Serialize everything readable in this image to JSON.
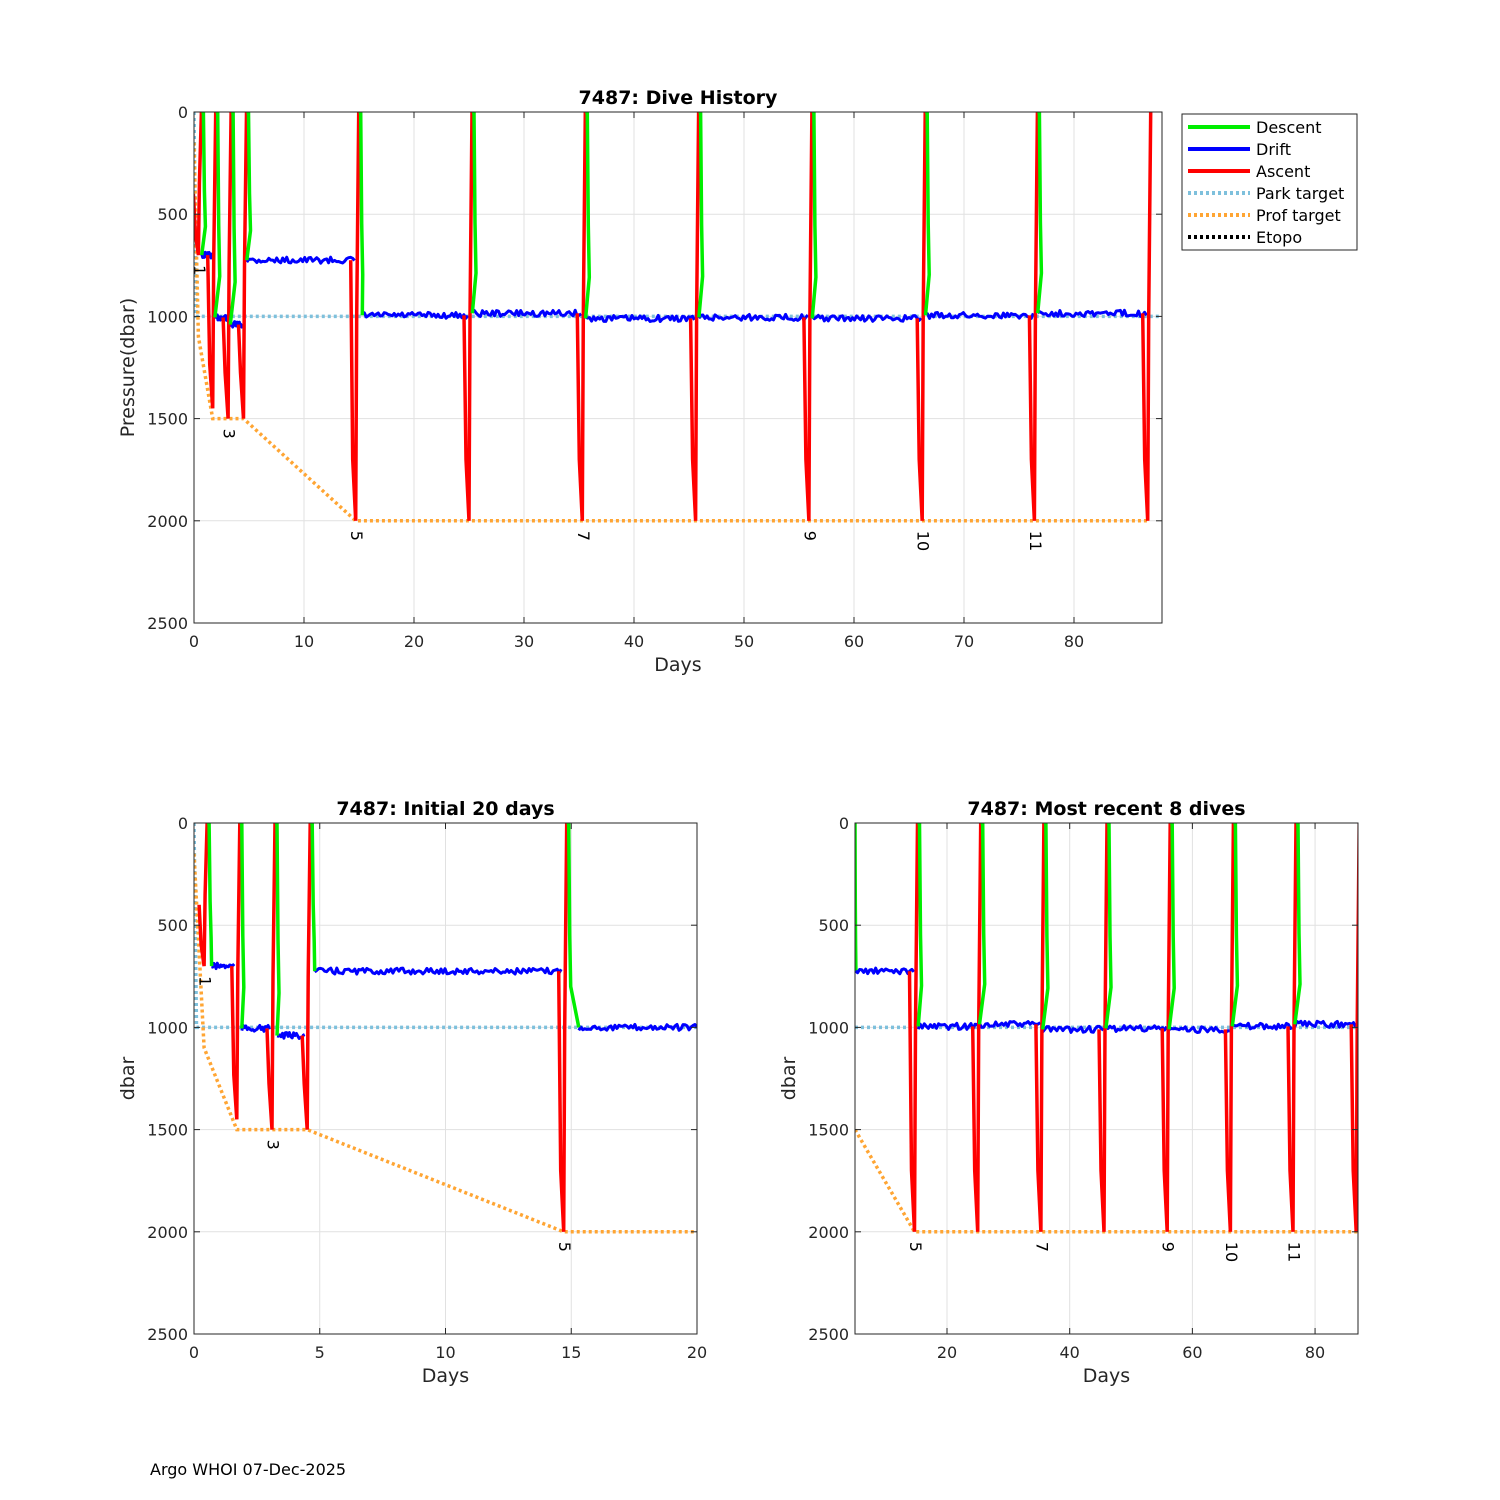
{
  "footer": "Argo WHOI 07-Dec-2025",
  "legend": {
    "items": [
      {
        "label": "Descent",
        "color": "#00ee00",
        "style": "solid"
      },
      {
        "label": "Drift",
        "color": "#0000ff",
        "style": "solid"
      },
      {
        "label": "Ascent",
        "color": "#ff0000",
        "style": "solid"
      },
      {
        "label": "Park target",
        "color": "#7ec0dc",
        "style": "dotted"
      },
      {
        "label": "Prof target",
        "color": "#ffa533",
        "style": "dotted"
      },
      {
        "label": "Etopo",
        "color": "#000000",
        "style": "dotted"
      }
    ]
  },
  "chart_data": [
    {
      "type": "line",
      "title": "7487: Dive History",
      "xlabel": "Days",
      "ylabel": "Pressure(dbar)",
      "xlim": [
        0,
        88
      ],
      "ylim": [
        0,
        2500
      ],
      "y_reversed": true,
      "xticks": [
        0,
        10,
        20,
        30,
        40,
        50,
        60,
        70,
        80
      ],
      "yticks": [
        0,
        500,
        1000,
        1500,
        2000,
        2500
      ],
      "grid": true,
      "legend_position": "outside-right",
      "dives": [
        {
          "day": 0.4,
          "depth": 700,
          "label": "1"
        },
        {
          "day": 1.7,
          "depth": 1450
        },
        {
          "day": 3.1,
          "depth": 1500,
          "label": "3"
        },
        {
          "day": 4.5,
          "depth": 1500
        },
        {
          "day": 14.7,
          "depth": 2000,
          "label": "5"
        },
        {
          "day": 25.0,
          "depth": 2000
        },
        {
          "day": 35.3,
          "depth": 2000,
          "label": "7"
        },
        {
          "day": 45.6,
          "depth": 2000
        },
        {
          "day": 55.9,
          "depth": 2000,
          "label": "9"
        },
        {
          "day": 66.2,
          "depth": 2000,
          "label": "10"
        },
        {
          "day": 76.4,
          "depth": 2000,
          "label": "11"
        },
        {
          "day": 86.7,
          "depth": 2000
        }
      ],
      "drift_segments": [
        {
          "start": 0.7,
          "end": 1.6,
          "pressure": 700
        },
        {
          "start": 1.9,
          "end": 3.0,
          "pressure": 1005
        },
        {
          "start": 3.3,
          "end": 4.4,
          "pressure": 1040
        },
        {
          "start": 4.8,
          "end": 14.6,
          "pressure": 725
        },
        {
          "start": 15.3,
          "end": 24.9,
          "pressure": 995
        },
        {
          "start": 25.3,
          "end": 35.2,
          "pressure": 985
        },
        {
          "start": 35.6,
          "end": 45.5,
          "pressure": 1010
        },
        {
          "start": 45.9,
          "end": 55.8,
          "pressure": 1005
        },
        {
          "start": 56.2,
          "end": 66.1,
          "pressure": 1010
        },
        {
          "start": 66.5,
          "end": 76.3,
          "pressure": 995
        },
        {
          "start": 76.7,
          "end": 86.6,
          "pressure": 985
        }
      ],
      "park_target": {
        "x": [
          0,
          0.2,
          88
        ],
        "y": [
          0,
          1000,
          1000
        ]
      },
      "prof_target": {
        "x": [
          0,
          0.4,
          1.7,
          4.5,
          14.7,
          86.7
        ],
        "y": [
          150,
          1100,
          1500,
          1500,
          2000,
          2000
        ]
      }
    },
    {
      "type": "line",
      "title": "7487: Initial 20 days",
      "xlabel": "Days",
      "ylabel": "dbar",
      "xlim": [
        0,
        20
      ],
      "ylim": [
        0,
        2500
      ],
      "y_reversed": true,
      "xticks": [
        0,
        5,
        10,
        15,
        20
      ],
      "yticks": [
        0,
        500,
        1000,
        1500,
        2000,
        2500
      ],
      "grid": true,
      "dives": [
        {
          "day": 0.4,
          "depth": 700,
          "label": "1"
        },
        {
          "day": 1.7,
          "depth": 1450
        },
        {
          "day": 3.1,
          "depth": 1500,
          "label": "3"
        },
        {
          "day": 4.5,
          "depth": 1500
        },
        {
          "day": 14.7,
          "depth": 2000,
          "label": "5"
        }
      ],
      "drift_segments": [
        {
          "start": 0.7,
          "end": 1.6,
          "pressure": 700
        },
        {
          "start": 1.9,
          "end": 3.0,
          "pressure": 1005
        },
        {
          "start": 3.3,
          "end": 4.4,
          "pressure": 1040
        },
        {
          "start": 4.8,
          "end": 14.6,
          "pressure": 725
        },
        {
          "start": 15.3,
          "end": 20,
          "pressure": 1000
        }
      ],
      "park_target": {
        "x": [
          0,
          0.1,
          20
        ],
        "y": [
          0,
          1000,
          1000
        ]
      },
      "prof_target": {
        "x": [
          0,
          0.4,
          1.7,
          4.5,
          14.7,
          20
        ],
        "y": [
          150,
          1100,
          1500,
          1500,
          2000,
          2000
        ]
      }
    },
    {
      "type": "line",
      "title": "7487: Most recent 8 dives",
      "xlabel": "Days",
      "ylabel": "dbar",
      "xlim": [
        5,
        87
      ],
      "ylim": [
        0,
        2500
      ],
      "y_reversed": true,
      "xticks": [
        20,
        40,
        60,
        80
      ],
      "yticks": [
        0,
        500,
        1000,
        1500,
        2000,
        2500
      ],
      "grid": true,
      "dives": [
        {
          "day": 14.7,
          "depth": 2000,
          "label": "5"
        },
        {
          "day": 25.0,
          "depth": 2000
        },
        {
          "day": 35.3,
          "depth": 2000,
          "label": "7"
        },
        {
          "day": 45.6,
          "depth": 2000
        },
        {
          "day": 55.9,
          "depth": 2000,
          "label": "9"
        },
        {
          "day": 66.2,
          "depth": 2000,
          "label": "10"
        },
        {
          "day": 76.4,
          "depth": 2000,
          "label": "11"
        },
        {
          "day": 86.7,
          "depth": 2000
        }
      ],
      "lead_in": {
        "start_day": 5.0,
        "start_pressure": 0,
        "drift_pressure": 725
      },
      "drift_segments": [
        {
          "start": 5.1,
          "end": 14.6,
          "pressure": 725
        },
        {
          "start": 15.3,
          "end": 24.9,
          "pressure": 995
        },
        {
          "start": 25.3,
          "end": 35.2,
          "pressure": 985
        },
        {
          "start": 35.6,
          "end": 45.5,
          "pressure": 1010
        },
        {
          "start": 45.9,
          "end": 55.8,
          "pressure": 1005
        },
        {
          "start": 56.2,
          "end": 66.1,
          "pressure": 1010
        },
        {
          "start": 66.5,
          "end": 76.3,
          "pressure": 995
        },
        {
          "start": 76.7,
          "end": 86.6,
          "pressure": 985
        }
      ],
      "park_target": {
        "x": [
          5,
          87
        ],
        "y": [
          1000,
          1000
        ]
      },
      "prof_target": {
        "x": [
          5,
          14.7,
          87
        ],
        "y": [
          1500,
          2000,
          2000
        ]
      }
    }
  ]
}
